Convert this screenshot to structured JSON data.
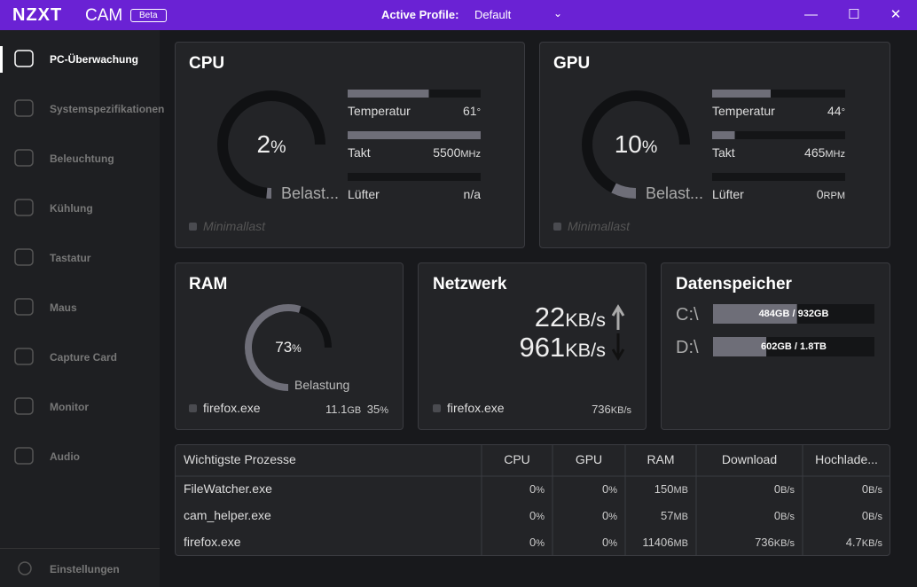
{
  "titlebar": {
    "brand": "NZXT",
    "product": "CAM",
    "badge": "Beta",
    "profile_label": "Active Profile:",
    "profile": "Default"
  },
  "sidebar": {
    "items": [
      "PC-Überwachung",
      "Systemspezifikationen",
      "Beleuchtung",
      "Kühlung",
      "Tastatur",
      "Maus",
      "Capture Card",
      "Monitor",
      "Audio"
    ],
    "settings": "Einstellungen"
  },
  "cpu": {
    "title": "CPU",
    "load": 2,
    "load_unit": "%",
    "load_label": "Belast...",
    "mode": "Minimallast",
    "stats": [
      {
        "label": "Temperatur",
        "value": "61",
        "unit": "°",
        "fill": 61
      },
      {
        "label": "Takt",
        "value": "5500",
        "unit": "MHz",
        "fill": 100
      },
      {
        "label": "Lüfter",
        "value": "n/a",
        "unit": "",
        "fill": 0
      }
    ]
  },
  "gpu": {
    "title": "GPU",
    "load": 10,
    "load_unit": "%",
    "load_label": "Belast...",
    "mode": "Minimallast",
    "stats": [
      {
        "label": "Temperatur",
        "value": "44",
        "unit": "°",
        "fill": 44
      },
      {
        "label": "Takt",
        "value": "465",
        "unit": "MHz",
        "fill": 17
      },
      {
        "label": "Lüfter",
        "value": "0",
        "unit": "RPM",
        "fill": 0
      }
    ]
  },
  "ram": {
    "title": "RAM",
    "load": 73,
    "load_unit": "%",
    "load_label": "Belastung",
    "process": "firefox.exe",
    "proc_mem": "11.1",
    "proc_mem_unit": "GB",
    "proc_pct": "35",
    "proc_pct_unit": "%"
  },
  "network": {
    "title": "Netzwerk",
    "up": "22",
    "up_unit": "KB/s",
    "down": "961",
    "down_unit": "KB/s",
    "process": "firefox.exe",
    "proc_rate": "736",
    "proc_rate_unit": "KB/s"
  },
  "storage": {
    "title": "Datenspeicher",
    "drives": [
      {
        "name": "C:\\",
        "usage": "484GB / 932GB",
        "fill": 52
      },
      {
        "name": "D:\\",
        "usage": "602GB / 1.8TB",
        "fill": 33
      }
    ]
  },
  "processes": {
    "headers": [
      "Wichtigste Prozesse",
      "CPU",
      "GPU",
      "RAM",
      "Download",
      "Hochlade..."
    ],
    "rows": [
      [
        "FileWatcher.exe",
        "0",
        "%",
        "0",
        "%",
        "150",
        "MB",
        "0",
        "B/s",
        "0",
        "B/s"
      ],
      [
        "cam_helper.exe",
        "0",
        "%",
        "0",
        "%",
        "57",
        "MB",
        "0",
        "B/s",
        "0",
        "B/s"
      ],
      [
        "firefox.exe",
        "0",
        "%",
        "0",
        "%",
        "11406",
        "MB",
        "736",
        "KB/s",
        "4.7",
        "KB/s"
      ]
    ]
  }
}
